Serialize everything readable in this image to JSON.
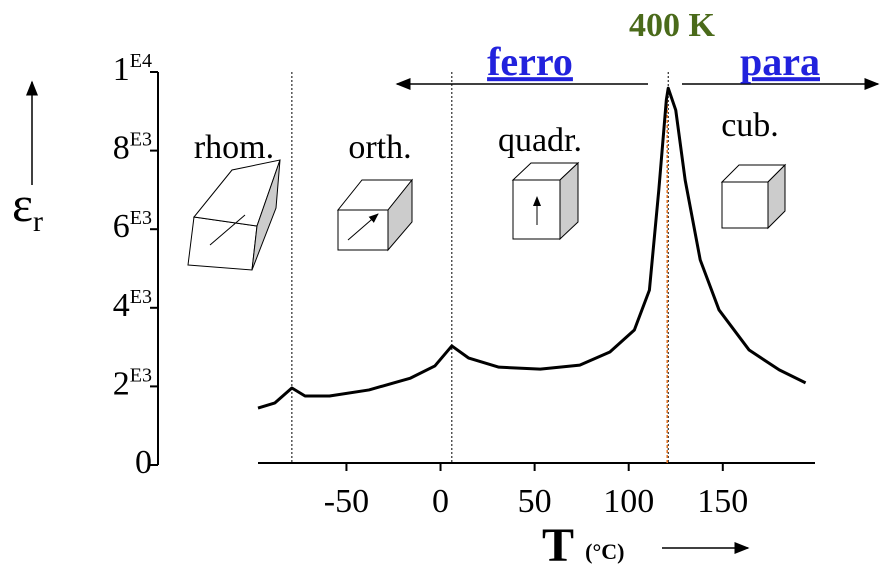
{
  "chart_data": {
    "type": "line",
    "x": [
      -97,
      -88,
      -79,
      -72,
      -59,
      -38,
      -16,
      -3,
      6,
      15,
      31,
      53,
      74,
      90,
      103,
      111,
      116,
      120,
      121,
      125,
      130,
      138,
      148,
      164,
      180,
      194
    ],
    "values": [
      1450,
      1580,
      1960,
      1755,
      1755,
      1910,
      2210,
      2520,
      3030,
      2720,
      2490,
      2440,
      2540,
      2875,
      3435,
      4450,
      7000,
      9290,
      9590,
      9030,
      7250,
      5220,
      3945,
      2925,
      2420,
      2090
    ],
    "color": "#000000",
    "xlim": [
      -97,
      199
    ],
    "xticks": [
      -50,
      0,
      50,
      100,
      150
    ],
    "ylim": [
      0,
      10000
    ],
    "yticks": [
      0,
      {
        "value": 2000,
        "label": "2E3"
      },
      {
        "value": 4000,
        "label": "4E3"
      },
      {
        "value": 6000,
        "label": "6E3"
      },
      {
        "value": 8000,
        "label": "8E3"
      },
      {
        "value": 10000,
        "label": "1E4"
      }
    ],
    "xlabel": "T (°C)",
    "ylabel": "εr",
    "transitions": [
      -79,
      6,
      121
    ],
    "annotations": [
      "rhom.",
      "orth.",
      "quadr.",
      "cub.",
      "ferro",
      "para",
      "400 K"
    ]
  }
}
